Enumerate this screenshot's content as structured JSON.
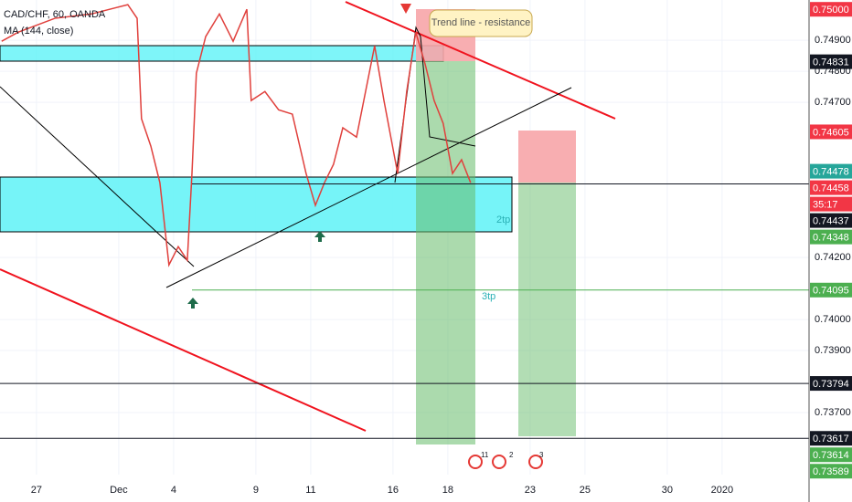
{
  "chart_data": {
    "type": "line",
    "title": "CAD/CHF, 60, OANDA",
    "subtitle": "MA (144, close)",
    "annotations": [
      "Trend line - resistance",
      "2tp",
      "3tp"
    ],
    "events": [
      "11",
      "2",
      "3"
    ],
    "color": "#e0403c",
    "x": [
      -1.27,
      -0.67,
      0.67,
      2,
      3.33,
      3.67,
      3.83,
      4.17,
      4.5,
      4.83,
      5.17,
      5.5,
      5.67,
      5.83,
      6.17,
      6.67,
      7.17,
      7.67,
      7.83,
      8.33,
      8.83,
      9.33,
      9.83,
      10.17,
      10.5,
      10.83,
      11.17,
      11.67,
      12,
      12.33,
      12.67,
      13.17,
      13.5,
      13.83,
      14.17,
      14.5,
      14.83,
      15.17,
      15.5,
      15.83
    ],
    "values": [
      0.74897,
      0.74926,
      0.74971,
      0.74985,
      0.75015,
      0.74971,
      0.74647,
      0.74559,
      0.74441,
      0.74176,
      0.74235,
      0.74191,
      0.74471,
      0.74794,
      0.74912,
      0.74985,
      0.74897,
      0.75,
      0.74706,
      0.74735,
      0.74676,
      0.74662,
      0.74471,
      0.74368,
      0.74441,
      0.745,
      0.74618,
      0.74588,
      0.74735,
      0.74882,
      0.74706,
      0.74471,
      0.74735,
      0.74926,
      0.74824,
      0.74706,
      0.74632,
      0.74471,
      0.74515,
      0.74441
    ],
    "xlim": [
      -1.33,
      28.17
    ],
    "xticks": [
      {
        "value": 0,
        "label": "27"
      },
      {
        "value": 3,
        "label": "Dec"
      },
      {
        "value": 5,
        "label": "4"
      },
      {
        "value": 8,
        "label": "9"
      },
      {
        "value": 10,
        "label": "11"
      },
      {
        "value": 13,
        "label": "16"
      },
      {
        "value": 15,
        "label": "18"
      },
      {
        "value": 18,
        "label": "23"
      },
      {
        "value": 20,
        "label": "25"
      },
      {
        "value": 23,
        "label": "30"
      },
      {
        "value": 25,
        "label": "2020"
      }
    ],
    "ylim": [
      0.735,
      0.7503
    ],
    "yticks": [
      {
        "value": 0.749,
        "label": "0.74900"
      },
      {
        "value": 0.748,
        "label": "0.74800"
      },
      {
        "value": 0.747,
        "label": "0.74700"
      },
      {
        "value": 0.742,
        "label": "0.74200"
      },
      {
        "value": 0.74,
        "label": "0.74000"
      },
      {
        "value": 0.739,
        "label": "0.73900"
      },
      {
        "value": 0.737,
        "label": "0.73700"
      }
    ],
    "grid": true,
    "price_labels": [
      {
        "value": 0.75,
        "label": "0.75000",
        "color": "#f23645"
      },
      {
        "value": 0.74831,
        "label": "0.74831",
        "color": "#131722"
      },
      {
        "value": 0.74605,
        "label": "0.74605",
        "color": "#f23645"
      },
      {
        "value": 0.74478,
        "label": "0.74478",
        "color": "#26a69a"
      },
      {
        "value": 0.74458,
        "label": "0.74458",
        "color": "#f23645"
      },
      {
        "value": 0.74437,
        "label": "0.74437",
        "color": "#131722"
      },
      {
        "value": 0.74348,
        "label": "0.74348",
        "color": "#4caf50"
      },
      {
        "value": 0.74095,
        "label": "0.74095",
        "color": "#4caf50"
      },
      {
        "value": 0.73794,
        "label": "0.73794",
        "color": "#131722"
      },
      {
        "value": 0.73617,
        "label": "0.73617",
        "color": "#131722"
      },
      {
        "value": 0.73614,
        "label": "0.73614",
        "color": "#4caf50"
      },
      {
        "value": 0.73589,
        "label": "0.73589",
        "color": "#4caf50"
      }
    ],
    "countdown": {
      "label": "35:17",
      "color": "#f23645"
    }
  }
}
